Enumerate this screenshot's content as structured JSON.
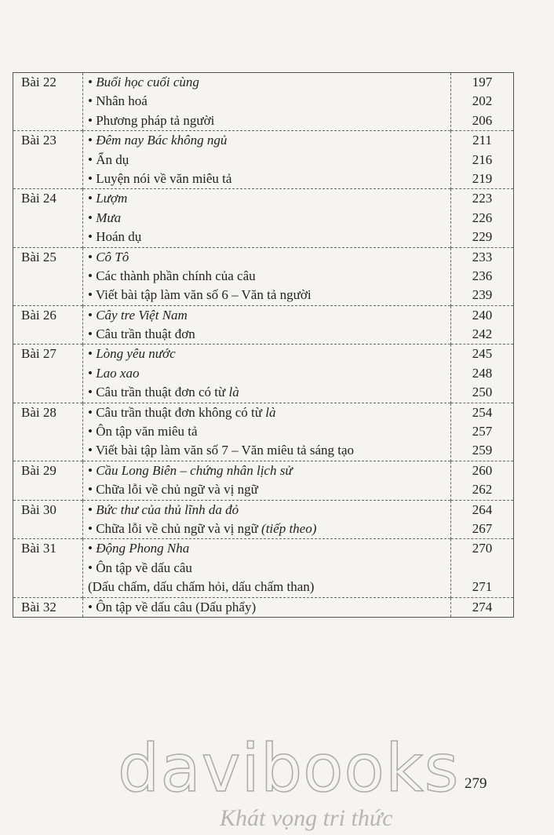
{
  "toc": [
    {
      "lesson": "Bài 22",
      "lines": [
        {
          "parts": [
            {
              "t": "• "
            },
            {
              "t": "Buổi học cuối cùng",
              "i": true
            }
          ],
          "page": "197"
        },
        {
          "parts": [
            {
              "t": "• Nhân hoá"
            }
          ],
          "page": "202"
        },
        {
          "parts": [
            {
              "t": "• Phương pháp tả người"
            }
          ],
          "page": "206"
        }
      ]
    },
    {
      "lesson": "Bài 23",
      "lines": [
        {
          "parts": [
            {
              "t": "• "
            },
            {
              "t": "Đêm nay Bác không ngủ",
              "i": true
            }
          ],
          "page": "211"
        },
        {
          "parts": [
            {
              "t": "• Ẩn dụ"
            }
          ],
          "page": "216"
        },
        {
          "parts": [
            {
              "t": "• Luyện nói về văn miêu tả"
            }
          ],
          "page": "219"
        }
      ]
    },
    {
      "lesson": "Bài 24",
      "lines": [
        {
          "parts": [
            {
              "t": "• "
            },
            {
              "t": "Lượm",
              "i": true
            }
          ],
          "page": "223"
        },
        {
          "parts": [
            {
              "t": "• "
            },
            {
              "t": "Mưa",
              "i": true
            }
          ],
          "page": "226"
        },
        {
          "parts": [
            {
              "t": "• Hoán dụ"
            }
          ],
          "page": "229"
        }
      ]
    },
    {
      "lesson": "Bài 25",
      "lines": [
        {
          "parts": [
            {
              "t": "• "
            },
            {
              "t": "Cô Tô",
              "i": true
            }
          ],
          "page": "233"
        },
        {
          "parts": [
            {
              "t": "• Các thành phần chính của câu"
            }
          ],
          "page": "236"
        },
        {
          "parts": [
            {
              "t": "• Viết bài tập làm văn số 6 – Văn tả người"
            }
          ],
          "page": "239"
        }
      ]
    },
    {
      "lesson": "Bài 26",
      "lines": [
        {
          "parts": [
            {
              "t": "• "
            },
            {
              "t": "Cây tre Việt Nam",
              "i": true
            }
          ],
          "page": "240"
        },
        {
          "parts": [
            {
              "t": "• Câu trần thuật đơn"
            }
          ],
          "page": "242"
        }
      ]
    },
    {
      "lesson": "Bài 27",
      "lines": [
        {
          "parts": [
            {
              "t": "• "
            },
            {
              "t": "Lòng yêu nước",
              "i": true
            }
          ],
          "page": "245"
        },
        {
          "parts": [
            {
              "t": "• "
            },
            {
              "t": "Lao xao",
              "i": true
            }
          ],
          "page": "248"
        },
        {
          "parts": [
            {
              "t": "• Câu trần thuật đơn có từ "
            },
            {
              "t": "là",
              "i": true
            }
          ],
          "page": "250"
        }
      ]
    },
    {
      "lesson": "Bài 28",
      "lines": [
        {
          "parts": [
            {
              "t": "• Câu trần thuật đơn không có từ "
            },
            {
              "t": "là",
              "i": true
            }
          ],
          "page": "254"
        },
        {
          "parts": [
            {
              "t": "• Ôn tập văn miêu tả"
            }
          ],
          "page": "257"
        },
        {
          "parts": [
            {
              "t": "• Viết bài tập làm văn số 7 – Văn miêu tả sáng tạo"
            }
          ],
          "page": "259"
        }
      ]
    },
    {
      "lesson": "Bài 29",
      "lines": [
        {
          "parts": [
            {
              "t": "• "
            },
            {
              "t": "Cầu Long Biên – chứng nhân lịch sử",
              "i": true
            }
          ],
          "page": "260"
        },
        {
          "parts": [
            {
              "t": "• Chữa lỗi về chủ ngữ và vị ngữ"
            }
          ],
          "page": "262"
        }
      ]
    },
    {
      "lesson": "Bài 30",
      "lines": [
        {
          "parts": [
            {
              "t": "• "
            },
            {
              "t": "Bức thư của thủ lĩnh da đỏ",
              "i": true
            }
          ],
          "page": "264"
        },
        {
          "parts": [
            {
              "t": "• Chữa lỗi về chủ ngữ và vị ngữ "
            },
            {
              "t": "(tiếp theo)",
              "i": true
            }
          ],
          "page": "267"
        }
      ]
    },
    {
      "lesson": "Bài 31",
      "lines": [
        {
          "parts": [
            {
              "t": "• "
            },
            {
              "t": "Động Phong Nha",
              "i": true
            }
          ],
          "page": "270"
        },
        {
          "parts": [
            {
              "t": "• Ôn tập về dấu câu"
            }
          ],
          "page": ""
        },
        {
          "parts": [
            {
              "t": "(Dấu chấm, dấu chấm hỏi, dấu chấm than)"
            }
          ],
          "page": "271"
        }
      ]
    },
    {
      "lesson": "Bài 32",
      "lines": [
        {
          "parts": [
            {
              "t": "• Ôn tập về dấu câu (Dấu phẩy)"
            }
          ],
          "page": "274"
        }
      ]
    }
  ],
  "page_number": "279",
  "watermark": {
    "brand": "davibooks",
    "slogan": "Khát vọng tri thức"
  }
}
